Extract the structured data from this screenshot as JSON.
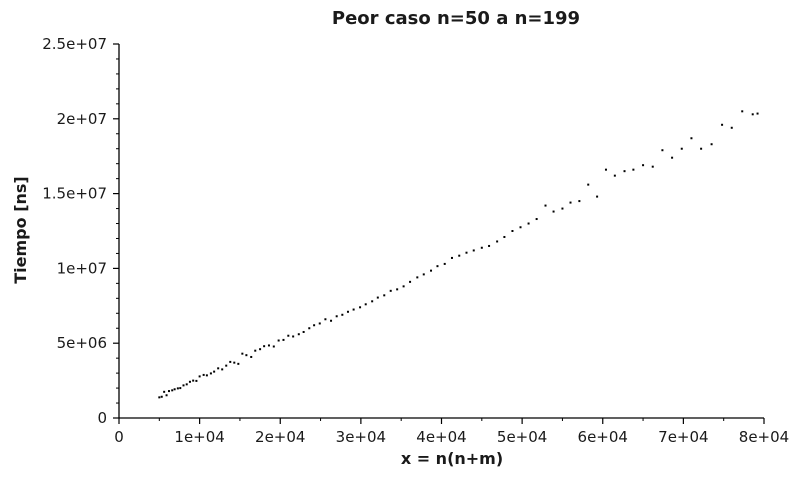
{
  "chart_data": {
    "type": "scatter",
    "title": "Peor caso n=50 a n=199",
    "xlabel": "x = n(n+m)",
    "ylabel": "Tiempo [ns]",
    "xlim": [
      0,
      80000
    ],
    "ylim": [
      0,
      25000000
    ],
    "x_ticks": [
      0,
      10000,
      20000,
      30000,
      40000,
      50000,
      60000,
      70000,
      80000
    ],
    "x_tick_labels": [
      "0",
      "1e+04",
      "2e+04",
      "3e+04",
      "4e+04",
      "5e+04",
      "6e+04",
      "7e+04",
      "8e+04"
    ],
    "y_ticks": [
      0,
      5000000,
      10000000,
      15000000,
      20000000,
      25000000
    ],
    "y_tick_labels": [
      "0",
      "5e+06",
      "1e+07",
      "1.5e+07",
      "2e+07",
      "2.5e+07"
    ],
    "grid": false,
    "legend": "none",
    "marker_color": "#000000",
    "series": [
      {
        "values": [
          [
            5000,
            1380000
          ],
          [
            5300,
            1420000
          ],
          [
            5600,
            1750000
          ],
          [
            5900,
            1520000
          ],
          [
            6200,
            1800000
          ],
          [
            6600,
            1850000
          ],
          [
            6900,
            1920000
          ],
          [
            7300,
            1980000
          ],
          [
            7600,
            2000000
          ],
          [
            8000,
            2180000
          ],
          [
            8400,
            2250000
          ],
          [
            8800,
            2420000
          ],
          [
            9200,
            2500000
          ],
          [
            9600,
            2480000
          ],
          [
            10000,
            2780000
          ],
          [
            10500,
            2880000
          ],
          [
            10900,
            2850000
          ],
          [
            11400,
            2980000
          ],
          [
            11800,
            3100000
          ],
          [
            12300,
            3320000
          ],
          [
            12800,
            3250000
          ],
          [
            13300,
            3500000
          ],
          [
            13800,
            3750000
          ],
          [
            14300,
            3700000
          ],
          [
            14800,
            3620000
          ],
          [
            15300,
            4300000
          ],
          [
            15800,
            4200000
          ],
          [
            16400,
            4080000
          ],
          [
            16900,
            4500000
          ],
          [
            17500,
            4600000
          ],
          [
            18000,
            4800000
          ],
          [
            18600,
            4850000
          ],
          [
            19200,
            4780000
          ],
          [
            19800,
            5180000
          ],
          [
            20400,
            5220000
          ],
          [
            21000,
            5500000
          ],
          [
            21600,
            5450000
          ],
          [
            22300,
            5600000
          ],
          [
            22900,
            5750000
          ],
          [
            23600,
            6000000
          ],
          [
            24200,
            6200000
          ],
          [
            24900,
            6320000
          ],
          [
            25600,
            6600000
          ],
          [
            26300,
            6500000
          ],
          [
            27000,
            6800000
          ],
          [
            27700,
            6900000
          ],
          [
            28400,
            7100000
          ],
          [
            29100,
            7250000
          ],
          [
            29900,
            7400000
          ],
          [
            30600,
            7600000
          ],
          [
            31400,
            7800000
          ],
          [
            32100,
            8050000
          ],
          [
            32900,
            8200000
          ],
          [
            33700,
            8500000
          ],
          [
            34500,
            8600000
          ],
          [
            35300,
            8800000
          ],
          [
            36100,
            9100000
          ],
          [
            37000,
            9400000
          ],
          [
            37800,
            9600000
          ],
          [
            38700,
            9850000
          ],
          [
            39500,
            10150000
          ],
          [
            40400,
            10300000
          ],
          [
            41300,
            10700000
          ],
          [
            42200,
            10850000
          ],
          [
            43100,
            11050000
          ],
          [
            44000,
            11200000
          ],
          [
            45000,
            11380000
          ],
          [
            45900,
            11500000
          ],
          [
            46900,
            11800000
          ],
          [
            47800,
            12100000
          ],
          [
            48800,
            12500000
          ],
          [
            49800,
            12750000
          ],
          [
            50800,
            13000000
          ],
          [
            51800,
            13300000
          ],
          [
            52900,
            14200000
          ],
          [
            53900,
            13800000
          ],
          [
            55000,
            14000000
          ],
          [
            56000,
            14400000
          ],
          [
            57100,
            14500000
          ],
          [
            58200,
            15600000
          ],
          [
            59300,
            14800000
          ],
          [
            60400,
            16600000
          ],
          [
            61500,
            16200000
          ],
          [
            62700,
            16500000
          ],
          [
            63800,
            16600000
          ],
          [
            65000,
            16900000
          ],
          [
            66200,
            16800000
          ],
          [
            67400,
            17900000
          ],
          [
            68600,
            17400000
          ],
          [
            69800,
            18000000
          ],
          [
            71000,
            18700000
          ],
          [
            72200,
            18000000
          ],
          [
            73500,
            18300000
          ],
          [
            74800,
            19600000
          ],
          [
            76000,
            19400000
          ],
          [
            77300,
            20500000
          ],
          [
            78600,
            20300000
          ],
          [
            79200,
            20350000
          ]
        ]
      }
    ]
  }
}
